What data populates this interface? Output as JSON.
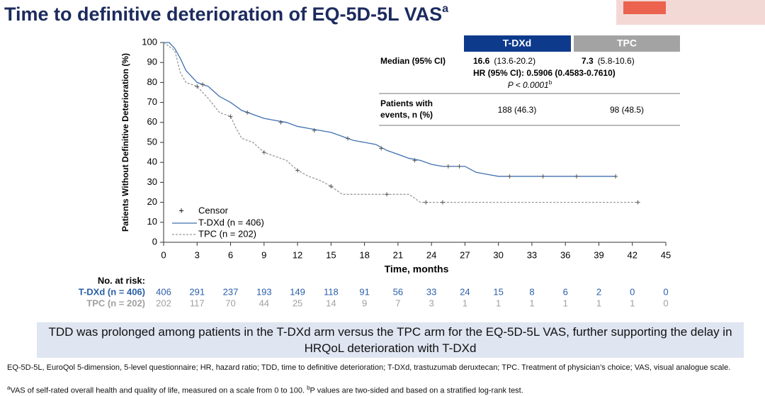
{
  "header": {
    "title": "Time to definitive deterioration of EQ-5D-5L VAS",
    "title_sup": "a"
  },
  "chart_data": {
    "type": "line",
    "y_label": "Patients Without Definitive Deterioration (%)",
    "x_label": "Time, months",
    "xlim": [
      0,
      45
    ],
    "xticks": [
      0,
      3,
      6,
      9,
      12,
      15,
      18,
      21,
      24,
      27,
      30,
      33,
      36,
      39,
      42,
      45
    ],
    "ylim": [
      0,
      100
    ],
    "yticks": [
      0,
      10,
      20,
      30,
      40,
      50,
      60,
      70,
      80,
      90,
      100
    ],
    "legend_censor": "Censor",
    "series": [
      {
        "name": "T-DXd (n = 406)",
        "color": "#3f6fb0",
        "line_style": "solid",
        "x": [
          0,
          0.5,
          1,
          1.5,
          2,
          2.5,
          3,
          4,
          5,
          6,
          7,
          8,
          9,
          10,
          11,
          12,
          13,
          14,
          15,
          16,
          17,
          18,
          19,
          20,
          21,
          22,
          23,
          24,
          25,
          27,
          28,
          29,
          30,
          40.5
        ],
        "values": [
          100,
          100,
          97,
          92,
          86,
          83,
          80,
          78,
          73,
          70,
          66,
          64,
          62,
          61,
          60,
          58,
          57,
          56,
          55,
          53,
          51,
          50,
          49,
          46,
          44,
          42,
          41,
          39,
          38,
          38,
          35,
          34,
          33,
          33
        ],
        "censor_x": [
          3.5,
          7.5,
          10.5,
          13.5,
          16.5,
          19.5,
          22.5,
          25.5,
          26.5,
          31,
          34,
          37,
          40.5
        ],
        "censor_y": [
          79,
          65,
          60,
          56,
          52,
          47,
          41,
          38,
          38,
          33,
          33,
          33,
          33
        ]
      },
      {
        "name": "TPC (n = 202)",
        "color": "#9a9a9a",
        "line_style": "dashed",
        "x": [
          0,
          1,
          1.5,
          2,
          3,
          4,
          5,
          6,
          6.5,
          7,
          8,
          9,
          10,
          11,
          12,
          13,
          14,
          15,
          16,
          22,
          23,
          42.5
        ],
        "values": [
          100,
          96,
          85,
          80,
          78,
          72,
          65,
          63,
          57,
          52,
          50,
          45,
          43,
          41,
          36,
          33,
          31,
          28,
          24,
          24,
          20,
          20
        ],
        "censor_x": [
          3,
          6,
          9,
          12,
          15,
          20,
          23.5,
          25,
          42.5
        ],
        "censor_y": [
          78,
          63,
          45,
          36,
          28,
          24,
          20,
          20,
          20
        ]
      }
    ],
    "at_risk": {
      "title": "No. at risk:",
      "rows": [
        {
          "label": "T-DXd (n = 406)",
          "color": "#2b5fa8",
          "values": [
            "406",
            "291",
            "237",
            "193",
            "149",
            "118",
            "91",
            "56",
            "33",
            "24",
            "15",
            "8",
            "6",
            "2",
            "0",
            "0"
          ]
        },
        {
          "label": "TPC (n = 202)",
          "color": "#a0a0a0",
          "values": [
            "202",
            "117",
            "70",
            "44",
            "25",
            "14",
            "9",
            "7",
            "3",
            "1",
            "1",
            "1",
            "1",
            "1",
            "1",
            "0"
          ]
        }
      ]
    }
  },
  "summary": {
    "headers": [
      "T-DXd",
      "TPC"
    ],
    "median_label": "Median (95% CI)",
    "medians": [
      {
        "value": "16.6",
        "ci": "(13.6-20.2)"
      },
      {
        "value": "7.3",
        "ci": "(5.8-10.6)"
      }
    ],
    "hr": "HR (95% CI): 0.5906 (0.4583-0.7610)",
    "p_value": "P < 0.0001",
    "p_sup": "b",
    "events_label": [
      "Patients with",
      "events, n (%)"
    ],
    "events": [
      "188 (46.3)",
      "98 (48.5)"
    ]
  },
  "message": "TDD was prolonged among patients in the T-DXd arm versus the TPC arm for the EQ-5D-5L VAS, further supporting the delay in HRQoL deterioration with T-DXd",
  "footnotes": {
    "abbreviations": "EQ-5D-5L, EuroQol 5-dimension, 5-level questionnaire; HR, hazard ratio; TDD, time to definitive deterioration; T-DXd, trastuzumab deruxtecan; TPC. Treatment of physician’s choice; VAS, visual analogue scale.",
    "note_a_mark": "a",
    "note_a": "VAS of self-rated overall health and quality of life, measured on a scale from 0 to 100. ",
    "note_b_mark": "b",
    "note_b": "P values are two-sided and based on a stratified log-rank test."
  }
}
